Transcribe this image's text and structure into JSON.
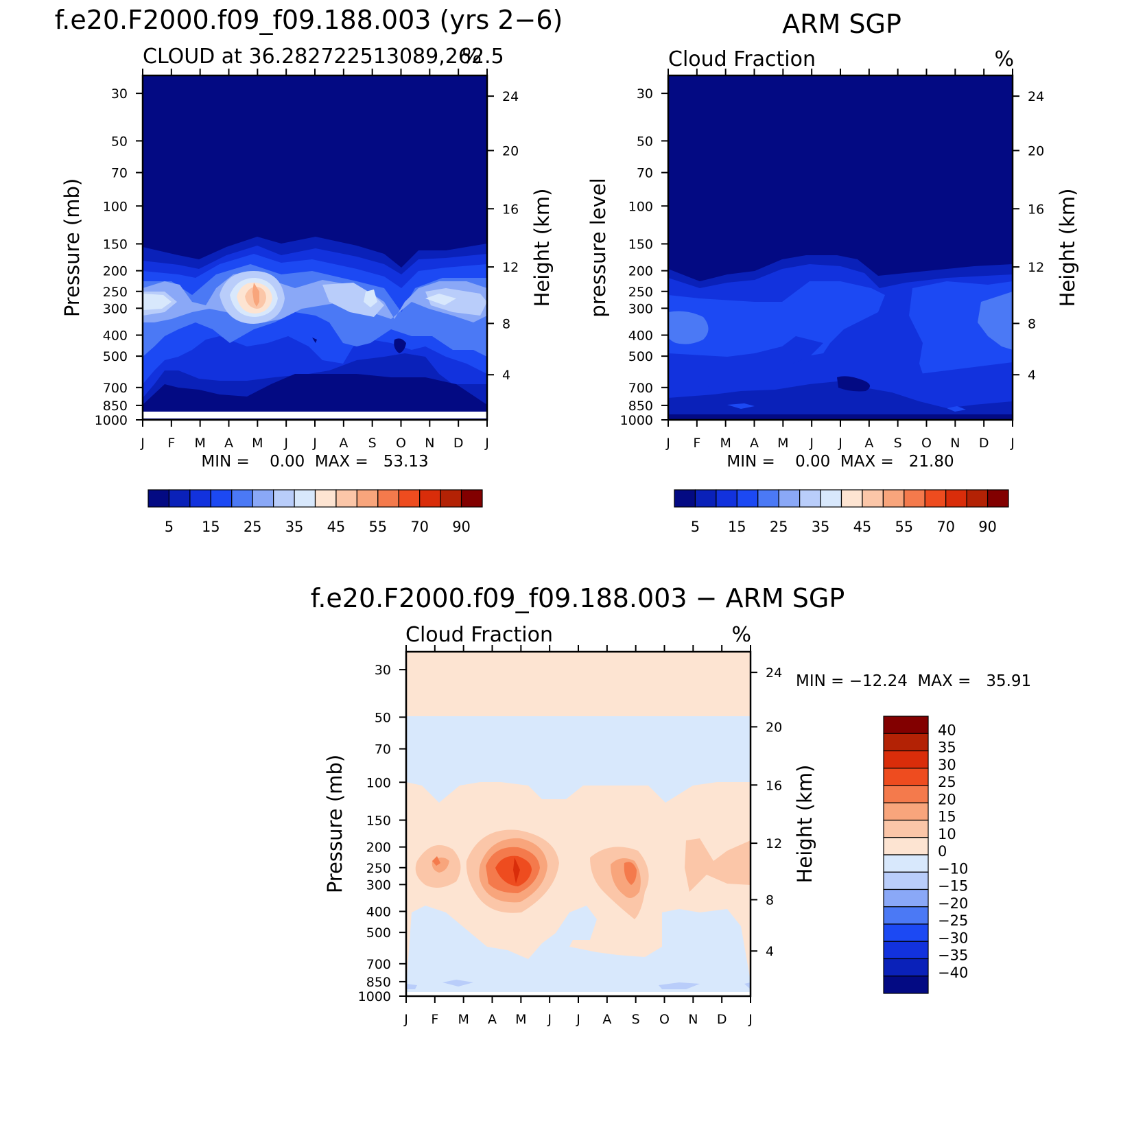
{
  "panels": [
    {
      "title": "f.e20.F2000.f09_f09.188.003 (yrs 2−6)",
      "subtitle_left": "CLOUD at 36.28272251308​9,262.5",
      "subtitle_right": "%",
      "ylabel_left": "Pressure (mb)",
      "ylabel_right": "Height (km)",
      "minmax": "MIN =    0.00  MAX =   53.13"
    },
    {
      "title": "ARM SGP",
      "subtitle_left": "Cloud Fraction",
      "subtitle_right": "%",
      "ylabel_left": "pressure level",
      "ylabel_right": "Height (km)",
      "minmax": "MIN =    0.00  MAX =   21.80"
    },
    {
      "title": "f.e20.F2000.f09_f09.188.003 − ARM SGP",
      "subtitle_left": "Cloud Fraction",
      "subtitle_right": "%",
      "ylabel_left": "Pressure (mb)",
      "ylabel_right": "Height (km)",
      "minmax": "MIN = −12.24  MAX =   35.91"
    }
  ],
  "chart_data": [
    {
      "type": "heatmap",
      "title": "f.e20.F2000.f09_f09.188.003 (yrs 2−6)",
      "subtitle": "CLOUD at 36.282722513089,262.5",
      "xlabel": "",
      "ylabel": "Pressure (mb)",
      "y2label": "Height (km)",
      "x_ticks": [
        "J",
        "F",
        "M",
        "A",
        "M",
        "J",
        "J",
        "A",
        "S",
        "O",
        "N",
        "D",
        "J"
      ],
      "y_ticks": [
        "30",
        "50",
        "70",
        "100",
        "150",
        "200",
        "250",
        "300",
        "400",
        "500",
        "700",
        "850",
        "1000"
      ],
      "y2_ticks": [
        "24",
        "20",
        "16",
        "12",
        "8",
        "4"
      ],
      "colorbar_labels": [
        "5",
        "15",
        "25",
        "35",
        "45",
        "55",
        "70",
        "90"
      ],
      "colorbar_colors": [
        "#030a83",
        "#0a21b9",
        "#1232dd",
        "#1c49f3",
        "#4b79f5",
        "#8aa8f7",
        "#b9cdfa",
        "#d8e8fc",
        "#fde4d2",
        "#fbc6a8",
        "#f8a57c",
        "#f47a4c",
        "#ee4c1f",
        "#d92d0a",
        "#b32205",
        "#820000"
      ],
      "min": 0.0,
      "max": 53.13
    },
    {
      "type": "heatmap",
      "title": "ARM SGP",
      "subtitle": "Cloud Fraction",
      "xlabel": "",
      "ylabel": "pressure level",
      "y2label": "Height (km)",
      "x_ticks": [
        "J",
        "F",
        "M",
        "A",
        "M",
        "J",
        "J",
        "A",
        "S",
        "O",
        "N",
        "D",
        "J"
      ],
      "y_ticks": [
        "30",
        "50",
        "70",
        "100",
        "150",
        "200",
        "250",
        "300",
        "400",
        "500",
        "700",
        "850",
        "1000"
      ],
      "y2_ticks": [
        "24",
        "20",
        "16",
        "12",
        "8",
        "4"
      ],
      "colorbar_labels": [
        "5",
        "15",
        "25",
        "35",
        "45",
        "55",
        "70",
        "90"
      ],
      "colorbar_colors": [
        "#030a83",
        "#0a21b9",
        "#1232dd",
        "#1c49f3",
        "#4b79f5",
        "#8aa8f7",
        "#b9cdfa",
        "#d8e8fc",
        "#fde4d2",
        "#fbc6a8",
        "#f8a57c",
        "#f47a4c",
        "#ee4c1f",
        "#d92d0a",
        "#b32205",
        "#820000"
      ],
      "min": 0.0,
      "max": 21.8
    },
    {
      "type": "heatmap",
      "title": "f.e20.F2000.f09_f09.188.003 − ARM SGP",
      "subtitle": "Cloud Fraction",
      "xlabel": "",
      "ylabel": "Pressure (mb)",
      "y2label": "Height (km)",
      "x_ticks": [
        "J",
        "F",
        "M",
        "A",
        "M",
        "J",
        "J",
        "A",
        "S",
        "O",
        "N",
        "D",
        "J"
      ],
      "y_ticks": [
        "30",
        "50",
        "70",
        "100",
        "150",
        "200",
        "250",
        "300",
        "400",
        "500",
        "700",
        "850",
        "1000"
      ],
      "y2_ticks": [
        "24",
        "20",
        "16",
        "12",
        "8",
        "4"
      ],
      "colorbar_labels": [
        "40",
        "35",
        "30",
        "25",
        "20",
        "15",
        "10",
        "0",
        "−10",
        "−15",
        "−20",
        "−25",
        "−30",
        "−35",
        "−40"
      ],
      "colorbar_colors": [
        "#820000",
        "#b32205",
        "#d92d0a",
        "#ee4c1f",
        "#f47a4c",
        "#f8a57c",
        "#fbc6a8",
        "#fde4d2",
        "#d8e8fc",
        "#b9cdfa",
        "#8aa8f7",
        "#4b79f5",
        "#1c49f3",
        "#1232dd",
        "#0a21b9",
        "#030a83"
      ],
      "min": -12.24,
      "max": 35.91
    }
  ]
}
